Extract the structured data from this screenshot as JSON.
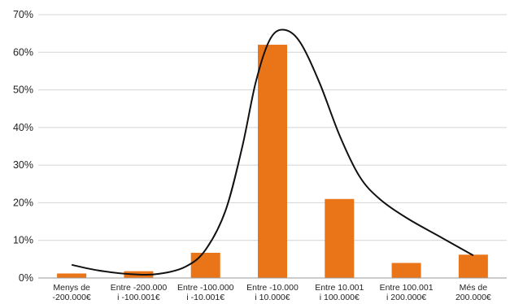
{
  "chart_data": {
    "type": "bar",
    "title": "",
    "xlabel": "",
    "ylabel": "",
    "categories": [
      [
        "Menys de",
        "-200.000€"
      ],
      [
        "Entre -200.000",
        "i -100.001€"
      ],
      [
        "Entre -100.000",
        "i -10.001€"
      ],
      [
        "Entre -10.000",
        "i 10.000€"
      ],
      [
        "Entre 10.001",
        "i 100.000€"
      ],
      [
        "Entre 100.001",
        "i 200.000€"
      ],
      [
        "Més de",
        "200.000€"
      ]
    ],
    "values": [
      1.2,
      1.8,
      6.7,
      62,
      21,
      4,
      6.2
    ],
    "ylim": [
      0,
      70
    ],
    "yticks": [
      0,
      10,
      20,
      30,
      40,
      50,
      60,
      70
    ],
    "ytick_format": "{v}%",
    "grid": true,
    "bar_color": "#ea7418",
    "curve": {
      "type": "line",
      "color": "#111111",
      "points": [
        [
          0.0,
          3.5
        ],
        [
          0.4,
          2.0
        ],
        [
          0.9,
          1.0
        ],
        [
          1.3,
          1.1
        ],
        [
          1.7,
          3.0
        ],
        [
          2.0,
          7.5
        ],
        [
          2.3,
          18.0
        ],
        [
          2.55,
          35.0
        ],
        [
          2.75,
          52.0
        ],
        [
          2.95,
          63.0
        ],
        [
          3.15,
          66.0
        ],
        [
          3.4,
          63.0
        ],
        [
          3.7,
          52.0
        ],
        [
          4.0,
          38.0
        ],
        [
          4.3,
          27.0
        ],
        [
          4.6,
          21.0
        ],
        [
          5.0,
          16.0
        ],
        [
          5.5,
          11.0
        ],
        [
          6.0,
          6.0
        ]
      ]
    }
  }
}
